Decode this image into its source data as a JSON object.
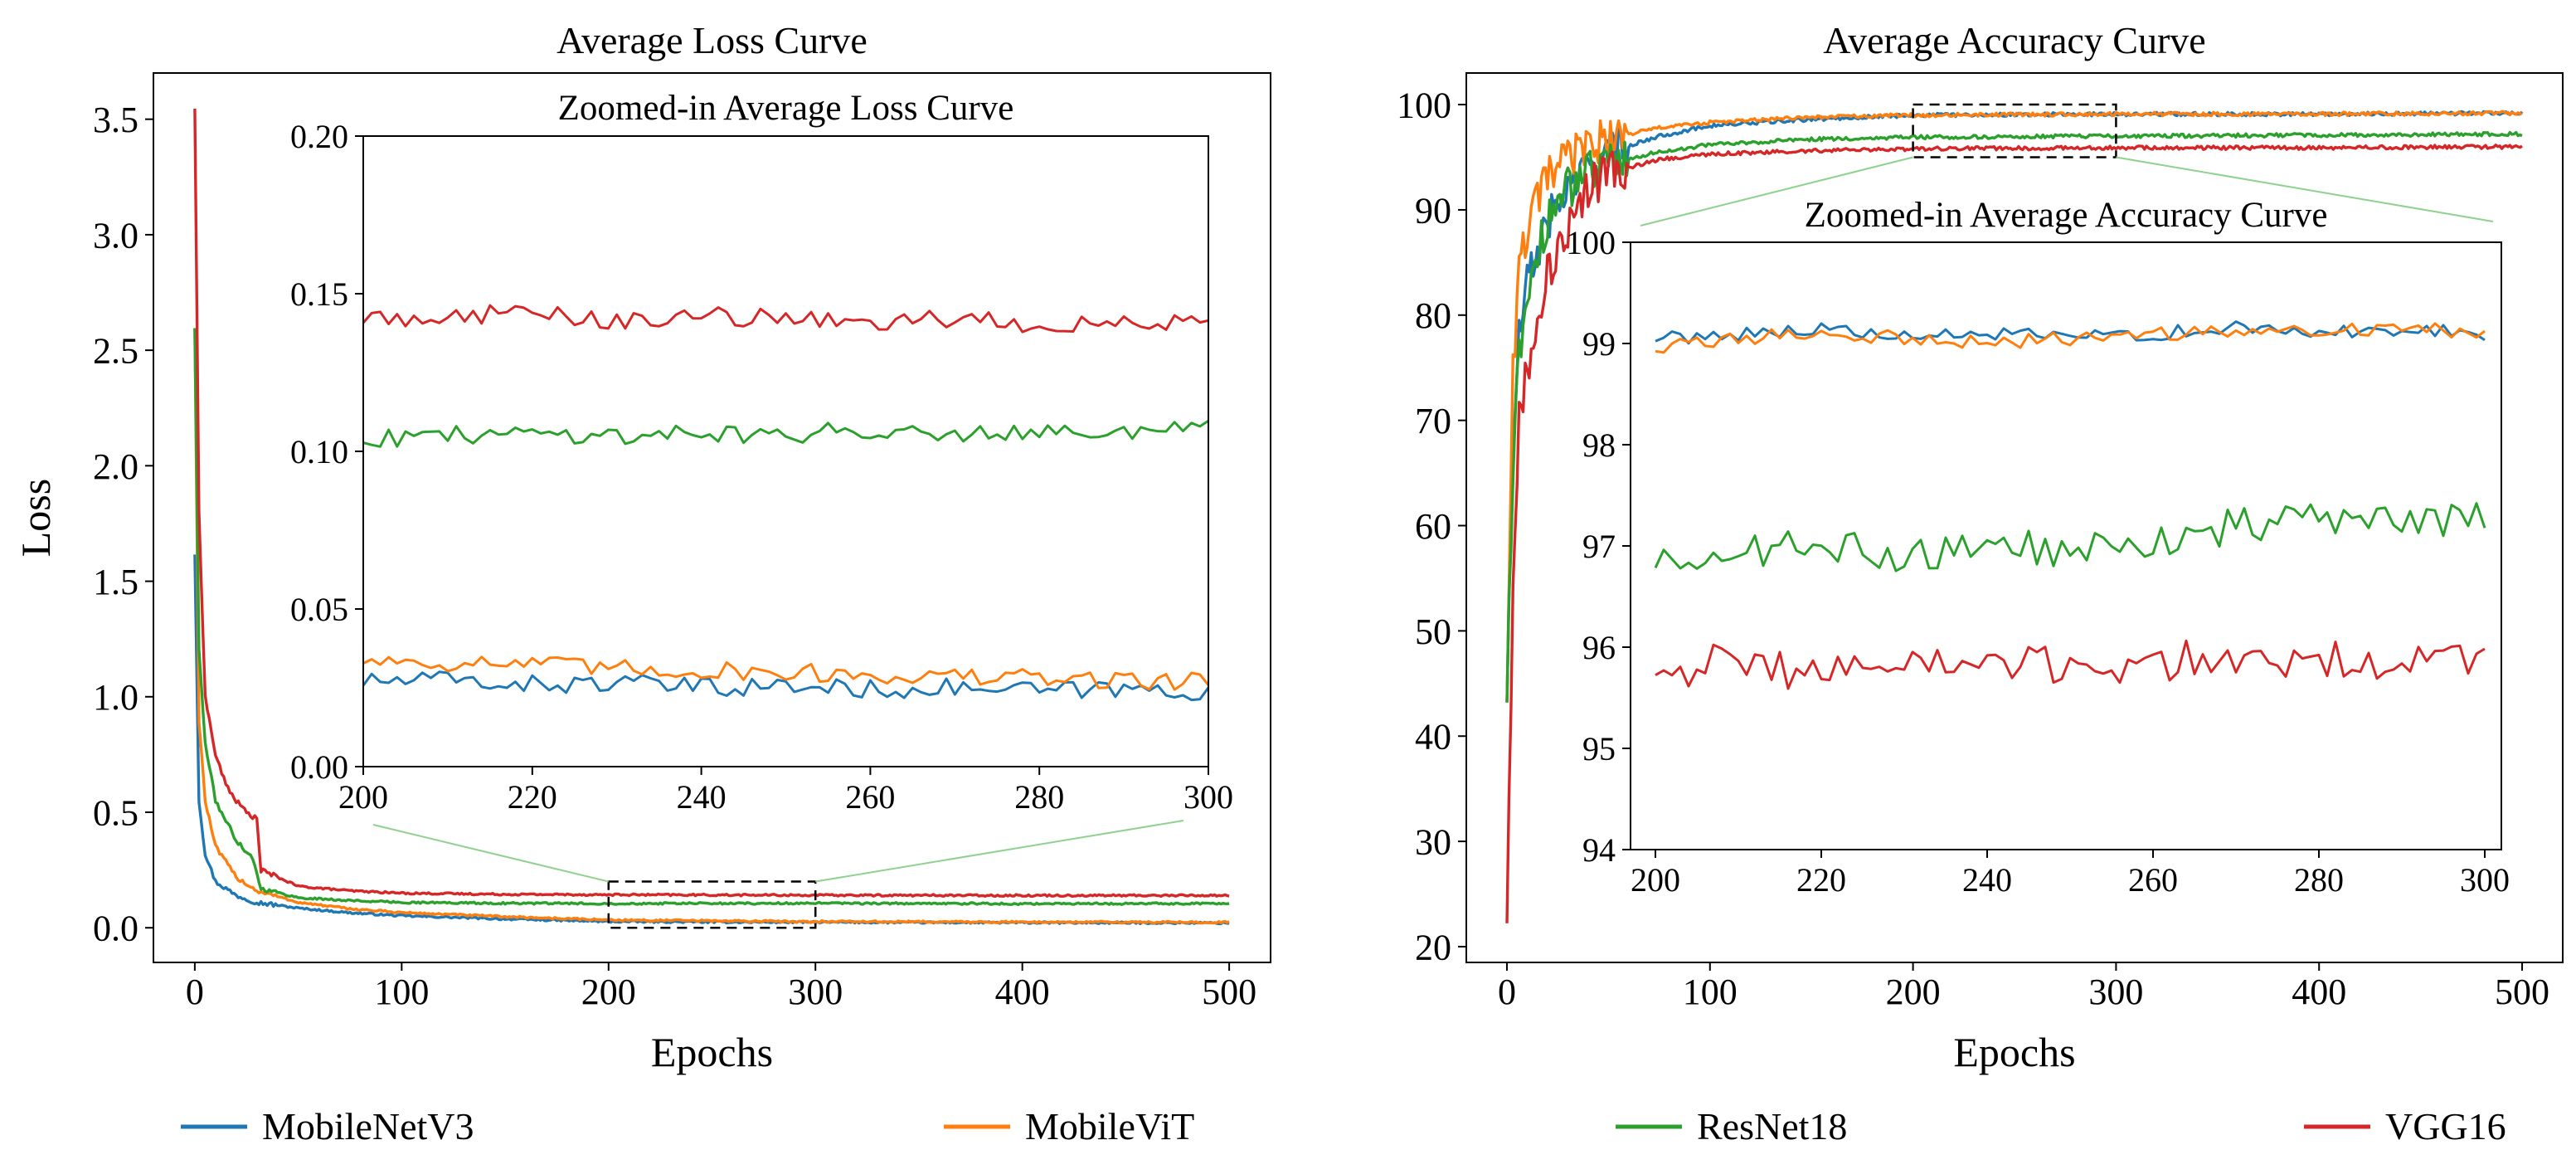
{
  "legend": [
    {
      "name": "MobileNetV3",
      "color": "#1f77b4"
    },
    {
      "name": "MobileViT",
      "color": "#ff7f0e"
    },
    {
      "name": "ResNet18",
      "color": "#2ca02c"
    },
    {
      "name": "VGG16",
      "color": "#d62728"
    }
  ],
  "chart_data": [
    {
      "id": "loss-main",
      "type": "line",
      "title": "Average Loss Curve",
      "xlabel": "Epochs",
      "ylabel": "Loss",
      "xlim": [
        -20,
        520
      ],
      "ylim": [
        -0.15,
        3.7
      ],
      "xticks": [
        0,
        100,
        200,
        300,
        400,
        500
      ],
      "yticks": [
        0.0,
        0.5,
        1.0,
        1.5,
        2.0,
        2.5,
        3.0,
        3.5
      ],
      "ytick_labels": [
        "0.0",
        "0.5",
        "1.0",
        "1.5",
        "2.0",
        "2.5",
        "3.0",
        "3.5"
      ],
      "zoom_region": {
        "x": [
          200,
          300
        ],
        "y": [
          0.0,
          0.2
        ]
      },
      "series": [
        {
          "name": "MobileNetV3",
          "x": [
            0,
            2,
            5,
            10,
            20,
            30,
            50,
            75,
            100,
            150,
            200,
            250,
            300,
            400,
            500
          ],
          "values": [
            1.62,
            0.55,
            0.32,
            0.2,
            0.14,
            0.11,
            0.085,
            0.065,
            0.052,
            0.038,
            0.027,
            0.025,
            0.024,
            0.022,
            0.021
          ]
        },
        {
          "name": "MobileViT",
          "x": [
            0,
            2,
            5,
            10,
            20,
            30,
            50,
            75,
            100,
            150,
            200,
            250,
            300,
            400,
            500
          ],
          "values": [
            2.6,
            0.9,
            0.55,
            0.35,
            0.22,
            0.16,
            0.11,
            0.082,
            0.066,
            0.048,
            0.034,
            0.03,
            0.027,
            0.025,
            0.024
          ]
        },
        {
          "name": "ResNet18",
          "x": [
            0,
            2,
            5,
            10,
            20,
            28,
            32,
            50,
            75,
            100,
            150,
            200,
            300,
            400,
            500
          ],
          "values": [
            2.6,
            1.2,
            0.8,
            0.55,
            0.38,
            0.3,
            0.17,
            0.13,
            0.118,
            0.11,
            0.106,
            0.105,
            0.106,
            0.104,
            0.105
          ]
        },
        {
          "name": "VGG16",
          "x": [
            0,
            2,
            5,
            10,
            15,
            20,
            25,
            30,
            32,
            50,
            75,
            100,
            150,
            200,
            300,
            400,
            500
          ],
          "values": [
            3.55,
            1.8,
            1.0,
            0.75,
            0.62,
            0.55,
            0.5,
            0.47,
            0.25,
            0.18,
            0.16,
            0.15,
            0.145,
            0.143,
            0.141,
            0.14,
            0.14
          ]
        }
      ]
    },
    {
      "id": "loss-inset",
      "type": "line",
      "title": "Zoomed-in Average Loss Curve",
      "xlim": [
        200,
        300
      ],
      "ylim": [
        0.0,
        0.2
      ],
      "xticks": [
        200,
        220,
        240,
        260,
        280,
        300
      ],
      "yticks": [
        0.0,
        0.05,
        0.1,
        0.15,
        0.2
      ],
      "ytick_labels": [
        "0.00",
        "0.05",
        "0.10",
        "0.15",
        "0.20"
      ],
      "series": [
        {
          "name": "MobileNetV3",
          "x": [
            200,
            210,
            220,
            230,
            240,
            250,
            260,
            270,
            280,
            290,
            300
          ],
          "values": [
            0.027,
            0.0275,
            0.026,
            0.0265,
            0.025,
            0.0255,
            0.0245,
            0.025,
            0.024,
            0.0245,
            0.024
          ]
        },
        {
          "name": "MobileViT",
          "x": [
            200,
            210,
            220,
            230,
            240,
            250,
            260,
            270,
            280,
            290,
            300
          ],
          "values": [
            0.034,
            0.033,
            0.0325,
            0.031,
            0.0305,
            0.03,
            0.029,
            0.0285,
            0.028,
            0.0275,
            0.027
          ]
        },
        {
          "name": "ResNet18",
          "x": [
            200,
            210,
            220,
            230,
            240,
            250,
            260,
            270,
            280,
            290,
            300
          ],
          "values": [
            0.104,
            0.105,
            0.106,
            0.105,
            0.106,
            0.105,
            0.107,
            0.106,
            0.107,
            0.106,
            0.107
          ]
        },
        {
          "name": "VGG16",
          "x": [
            200,
            210,
            220,
            230,
            240,
            250,
            260,
            270,
            280,
            290,
            300
          ],
          "values": [
            0.142,
            0.143,
            0.144,
            0.141,
            0.143,
            0.142,
            0.141,
            0.142,
            0.14,
            0.141,
            0.141
          ]
        }
      ]
    },
    {
      "id": "acc-main",
      "type": "line",
      "title": "Average Accuracy Curve",
      "xlabel": "Epochs",
      "ylabel": "",
      "xlim": [
        -20,
        520
      ],
      "ylim": [
        18.5,
        103
      ],
      "xticks": [
        0,
        100,
        200,
        300,
        400,
        500
      ],
      "yticks": [
        20,
        30,
        40,
        50,
        60,
        70,
        80,
        90,
        100
      ],
      "ytick_labels": [
        "20",
        "30",
        "40",
        "50",
        "60",
        "70",
        "80",
        "90",
        "100"
      ],
      "zoom_region": {
        "x": [
          200,
          300
        ],
        "y": [
          95,
          100
        ]
      },
      "series": [
        {
          "name": "MobileNetV3",
          "x": [
            0,
            3,
            6,
            10,
            15,
            20,
            30,
            40,
            50,
            75,
            100,
            150,
            200,
            300,
            400,
            500
          ],
          "values": [
            44,
            68,
            78,
            83,
            86,
            89,
            92,
            94,
            95.5,
            97,
            98,
            98.6,
            99,
            99.1,
            99.1,
            99.2
          ]
        },
        {
          "name": "MobileViT",
          "x": [
            0,
            3,
            6,
            10,
            15,
            20,
            30,
            40,
            50,
            75,
            100,
            150,
            200,
            300,
            400,
            500
          ],
          "values": [
            44,
            75,
            84,
            88,
            91,
            93,
            95,
            96,
            96.8,
            97.8,
            98.3,
            98.8,
            99,
            99.1,
            99.1,
            99.2
          ]
        },
        {
          "name": "ResNet18",
          "x": [
            0,
            3,
            6,
            10,
            15,
            20,
            30,
            40,
            50,
            75,
            100,
            150,
            200,
            300,
            400,
            500
          ],
          "values": [
            44,
            66,
            76,
            82,
            86,
            89,
            92,
            93.5,
            94.5,
            95.5,
            96.2,
            96.7,
            96.9,
            97.0,
            97.1,
            97.2
          ]
        },
        {
          "name": "VGG16",
          "x": [
            0,
            3,
            6,
            10,
            15,
            20,
            25,
            30,
            40,
            50,
            75,
            100,
            150,
            200,
            300,
            400,
            500
          ],
          "values": [
            23,
            55,
            70,
            75,
            80,
            84,
            86,
            88,
            92,
            93.5,
            94.8,
            95.3,
            95.6,
            95.8,
            95.9,
            95.9,
            96.0
          ]
        }
      ]
    },
    {
      "id": "acc-inset",
      "type": "line",
      "title": "Zoomed-in Average Accuracy Curve",
      "xlim": [
        197,
        302
      ],
      "ylim": [
        94,
        100
      ],
      "xticks": [
        200,
        220,
        240,
        260,
        280,
        300
      ],
      "yticks": [
        94,
        95,
        96,
        97,
        98,
        99,
        100
      ],
      "ytick_labels": [
        "94",
        "95",
        "96",
        "97",
        "98",
        "99",
        "100"
      ],
      "series": [
        {
          "name": "MobileNetV3",
          "x": [
            200,
            210,
            220,
            230,
            240,
            250,
            260,
            270,
            280,
            290,
            300
          ],
          "values": [
            99.05,
            99.1,
            99.15,
            99.05,
            99.1,
            99.05,
            99.1,
            99.15,
            99.1,
            99.15,
            99.1
          ]
        },
        {
          "name": "MobileViT",
          "x": [
            200,
            210,
            220,
            230,
            240,
            250,
            260,
            270,
            280,
            290,
            300
          ],
          "values": [
            98.95,
            99.05,
            99.1,
            99.05,
            99.0,
            99.05,
            99.1,
            99.1,
            99.15,
            99.15,
            99.1
          ]
        },
        {
          "name": "ResNet18",
          "x": [
            200,
            210,
            220,
            230,
            240,
            250,
            260,
            270,
            280,
            290,
            300
          ],
          "values": [
            96.85,
            96.95,
            97.0,
            96.9,
            97.0,
            96.95,
            97.05,
            97.2,
            97.3,
            97.2,
            97.25
          ]
        },
        {
          "name": "VGG16",
          "x": [
            200,
            210,
            220,
            230,
            240,
            250,
            260,
            270,
            280,
            290,
            300
          ],
          "values": [
            95.8,
            95.85,
            95.75,
            95.85,
            95.8,
            95.8,
            95.85,
            95.9,
            95.85,
            95.9,
            95.8
          ]
        }
      ]
    }
  ]
}
